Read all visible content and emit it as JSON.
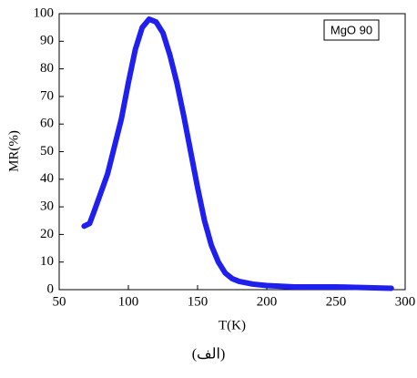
{
  "chart_data": {
    "type": "line",
    "x_label": "T(K)",
    "y_label": "MR(%)",
    "caption": "(الف)",
    "x": [
      68,
      72,
      75,
      80,
      85,
      90,
      95,
      100,
      105,
      110,
      115,
      120,
      125,
      130,
      135,
      140,
      145,
      150,
      155,
      160,
      165,
      170,
      175,
      180,
      190,
      200,
      220,
      250,
      290
    ],
    "series": [
      {
        "name": "MgO 90",
        "color": "#1f1ff0",
        "values": [
          23,
          24,
          28,
          35,
          42,
          52,
          62,
          75,
          87,
          95,
          98,
          97,
          93,
          85,
          75,
          63,
          50,
          37,
          25,
          16,
          10,
          6,
          4,
          3,
          2,
          1.5,
          1,
          1,
          0.5
        ]
      }
    ],
    "xlim": [
      50,
      300
    ],
    "xticks": [
      50,
      100,
      150,
      200,
      250,
      300
    ],
    "ylim": [
      0,
      100
    ],
    "yticks": [
      0,
      10,
      20,
      30,
      40,
      50,
      60,
      70,
      80,
      90,
      100
    ],
    "legend": "upper right"
  }
}
